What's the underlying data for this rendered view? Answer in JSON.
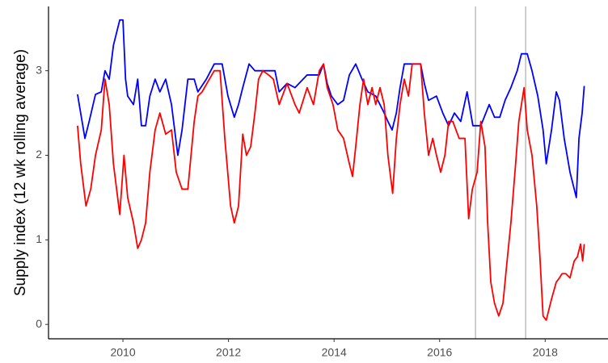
{
  "chart_data": {
    "type": "line",
    "y_label": "Supply index (12 wk rolling average)",
    "xlim": [
      2008.59,
      2019.19
    ],
    "xticks": [
      2010,
      2012,
      2014,
      2016,
      2018
    ],
    "ylim": [
      -0.17,
      3.76
    ],
    "yticks": [
      0,
      1,
      2,
      3
    ],
    "vlines": [
      2016.68,
      2017.63
    ],
    "vline_color": "#bebebe",
    "grid": false,
    "series": [
      {
        "color": "#0000ff",
        "x": [
          2009.14,
          2009.28,
          2009.36,
          2009.48,
          2009.59,
          2009.66,
          2009.74,
          2009.82,
          2009.94,
          2010.0,
          2010.05,
          2010.09,
          2010.2,
          2010.28,
          2010.35,
          2010.43,
          2010.51,
          2010.61,
          2010.7,
          2010.81,
          2010.92,
          2011.04,
          2011.12,
          2011.23,
          2011.35,
          2011.42,
          2011.58,
          2011.73,
          2011.88,
          2011.99,
          2012.11,
          2012.19,
          2012.27,
          2012.39,
          2012.5,
          2012.73,
          2012.88,
          2012.96,
          2013.11,
          2013.26,
          2013.49,
          2013.72,
          2013.8,
          2013.87,
          2013.95,
          2014.07,
          2014.18,
          2014.29,
          2014.41,
          2014.53,
          2014.64,
          2014.79,
          2014.95,
          2015.02,
          2015.1,
          2015.18,
          2015.25,
          2015.33,
          2015.48,
          2015.64,
          2015.71,
          2015.79,
          2015.94,
          2016.06,
          2016.17,
          2016.28,
          2016.4,
          2016.52,
          2016.63,
          2016.78,
          2016.94,
          2017.04,
          2017.14,
          2017.24,
          2017.35,
          2017.47,
          2017.55,
          2017.66,
          2017.75,
          2017.86,
          2017.96,
          2018.02,
          2018.12,
          2018.21,
          2018.27,
          2018.36,
          2018.47,
          2018.55,
          2018.59,
          2018.64,
          2018.7,
          2018.74
        ],
        "values": [
          2.72,
          2.2,
          2.4,
          2.72,
          2.75,
          3.0,
          2.9,
          3.3,
          3.6,
          3.6,
          2.9,
          2.7,
          2.6,
          2.9,
          2.35,
          2.35,
          2.7,
          2.9,
          2.75,
          2.9,
          2.6,
          2.0,
          2.3,
          2.9,
          2.9,
          2.75,
          2.9,
          3.08,
          3.08,
          2.7,
          2.45,
          2.6,
          2.8,
          3.08,
          3.0,
          3.0,
          3.0,
          2.75,
          2.85,
          2.8,
          2.95,
          2.95,
          3.08,
          2.85,
          2.7,
          2.6,
          2.65,
          2.95,
          3.08,
          2.9,
          2.75,
          2.7,
          2.5,
          2.4,
          2.3,
          2.5,
          2.8,
          3.08,
          3.08,
          3.08,
          2.85,
          2.65,
          2.7,
          2.5,
          2.35,
          2.5,
          2.4,
          2.75,
          2.35,
          2.35,
          2.6,
          2.45,
          2.45,
          2.65,
          2.8,
          3.0,
          3.2,
          3.2,
          3.0,
          2.7,
          2.3,
          1.9,
          2.3,
          2.75,
          2.65,
          2.2,
          1.8,
          1.6,
          1.5,
          2.2,
          2.5,
          2.82
        ]
      },
      {
        "color": "#ff0000",
        "x": [
          2009.14,
          2009.2,
          2009.3,
          2009.39,
          2009.48,
          2009.59,
          2009.66,
          2009.74,
          2009.82,
          2009.94,
          2010.02,
          2010.09,
          2010.2,
          2010.28,
          2010.35,
          2010.43,
          2010.51,
          2010.61,
          2010.7,
          2010.81,
          2010.92,
          2011.01,
          2011.12,
          2011.23,
          2011.35,
          2011.42,
          2011.5,
          2011.73,
          2011.84,
          2011.93,
          2012.04,
          2012.11,
          2012.19,
          2012.27,
          2012.34,
          2012.42,
          2012.5,
          2012.57,
          2012.65,
          2012.76,
          2012.85,
          2012.96,
          2013.11,
          2013.26,
          2013.34,
          2013.49,
          2013.61,
          2013.72,
          2013.8,
          2013.87,
          2013.98,
          2014.07,
          2014.18,
          2014.29,
          2014.35,
          2014.41,
          2014.49,
          2014.56,
          2014.64,
          2014.72,
          2014.79,
          2014.87,
          2014.95,
          2015.02,
          2015.11,
          2015.18,
          2015.25,
          2015.33,
          2015.41,
          2015.48,
          2015.64,
          2015.71,
          2015.79,
          2015.87,
          2015.94,
          2016.02,
          2016.1,
          2016.17,
          2016.25,
          2016.37,
          2016.48,
          2016.55,
          2016.62,
          2016.71,
          2016.78,
          2016.86,
          2016.91,
          2016.97,
          2017.04,
          2017.12,
          2017.2,
          2017.27,
          2017.35,
          2017.44,
          2017.5,
          2017.6,
          2017.66,
          2017.75,
          2017.84,
          2017.9,
          2017.96,
          2018.02,
          2018.12,
          2018.21,
          2018.27,
          2018.32,
          2018.39,
          2018.47,
          2018.55,
          2018.61,
          2018.67,
          2018.71,
          2018.74
        ],
        "values": [
          2.35,
          1.9,
          1.4,
          1.6,
          2.0,
          2.3,
          2.9,
          2.6,
          1.9,
          1.3,
          2.0,
          1.5,
          1.2,
          0.9,
          1.0,
          1.2,
          1.8,
          2.3,
          2.5,
          2.25,
          2.3,
          1.8,
          1.6,
          1.6,
          2.4,
          2.7,
          2.75,
          3.0,
          3.0,
          2.2,
          1.4,
          1.2,
          1.4,
          2.25,
          2.0,
          2.1,
          2.5,
          2.9,
          3.0,
          2.95,
          2.9,
          2.6,
          2.85,
          2.6,
          2.5,
          2.8,
          2.6,
          3.0,
          3.08,
          2.8,
          2.6,
          2.3,
          2.2,
          1.9,
          1.75,
          2.1,
          2.6,
          2.9,
          2.6,
          2.8,
          2.6,
          2.8,
          2.6,
          2.0,
          1.55,
          2.2,
          2.6,
          2.9,
          2.7,
          3.08,
          3.08,
          2.5,
          2.0,
          2.2,
          2.0,
          1.8,
          2.0,
          2.4,
          2.4,
          2.2,
          2.2,
          1.25,
          1.6,
          1.8,
          2.4,
          2.1,
          1.2,
          0.5,
          0.25,
          0.1,
          0.25,
          0.7,
          1.2,
          1.9,
          2.4,
          2.8,
          2.3,
          2.0,
          1.4,
          0.8,
          0.1,
          0.05,
          0.3,
          0.5,
          0.55,
          0.6,
          0.6,
          0.55,
          0.75,
          0.8,
          0.95,
          0.75,
          0.95
        ]
      }
    ]
  }
}
